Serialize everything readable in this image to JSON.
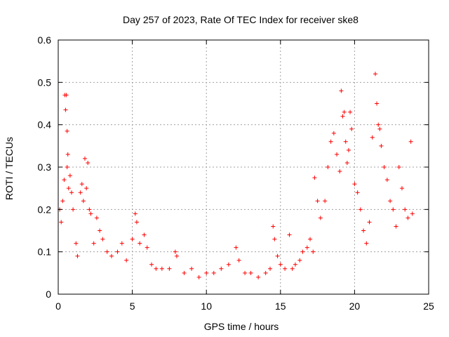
{
  "chart_data": {
    "type": "scatter",
    "title": "Day 257 of 2023, Rate Of TEC Index for receiver ske8",
    "xlabel": "GPS time / hours",
    "ylabel": "ROTI / TECUs",
    "xlim": [
      0,
      25
    ],
    "ylim": [
      0,
      0.6
    ],
    "x_ticks": [
      0,
      5,
      10,
      15,
      20,
      25
    ],
    "x_tick_labels": [
      "0",
      "5",
      "10",
      "15",
      "20",
      "25"
    ],
    "y_ticks": [
      0,
      0.1,
      0.2,
      0.3,
      0.4,
      0.5,
      0.6
    ],
    "y_tick_labels": [
      "0",
      "0.1",
      "0.2",
      "0.3",
      "0.4",
      "0.5",
      "0.6"
    ],
    "grid": true,
    "marker": "+",
    "color": "#ff0000",
    "series": [
      {
        "points": [
          [
            0.1,
            0.2
          ],
          [
            0.2,
            0.17
          ],
          [
            0.3,
            0.22
          ],
          [
            0.4,
            0.27
          ],
          [
            0.45,
            0.47
          ],
          [
            0.5,
            0.435
          ],
          [
            0.55,
            0.47
          ],
          [
            0.6,
            0.385
          ],
          [
            0.6,
            0.3
          ],
          [
            0.65,
            0.33
          ],
          [
            0.7,
            0.25
          ],
          [
            0.8,
            0.28
          ],
          [
            0.9,
            0.24
          ],
          [
            1.0,
            0.2
          ],
          [
            1.2,
            0.12
          ],
          [
            1.3,
            0.09
          ],
          [
            1.5,
            0.24
          ],
          [
            1.6,
            0.26
          ],
          [
            1.7,
            0.22
          ],
          [
            1.8,
            0.32
          ],
          [
            1.9,
            0.25
          ],
          [
            2.0,
            0.31
          ],
          [
            2.1,
            0.2
          ],
          [
            2.2,
            0.19
          ],
          [
            2.4,
            0.12
          ],
          [
            2.6,
            0.18
          ],
          [
            2.8,
            0.15
          ],
          [
            3.0,
            0.13
          ],
          [
            3.3,
            0.1
          ],
          [
            3.6,
            0.09
          ],
          [
            4.0,
            0.1
          ],
          [
            4.3,
            0.12
          ],
          [
            4.6,
            0.08
          ],
          [
            5.0,
            0.13
          ],
          [
            5.2,
            0.19
          ],
          [
            5.3,
            0.17
          ],
          [
            5.5,
            0.12
          ],
          [
            5.8,
            0.14
          ],
          [
            6.0,
            0.11
          ],
          [
            6.3,
            0.07
          ],
          [
            6.6,
            0.06
          ],
          [
            7.0,
            0.06
          ],
          [
            7.5,
            0.06
          ],
          [
            7.9,
            0.1
          ],
          [
            8.0,
            0.09
          ],
          [
            8.5,
            0.05
          ],
          [
            9.0,
            0.06
          ],
          [
            9.5,
            0.04
          ],
          [
            10.0,
            0.05
          ],
          [
            10.5,
            0.05
          ],
          [
            11.0,
            0.06
          ],
          [
            11.5,
            0.07
          ],
          [
            12.0,
            0.11
          ],
          [
            12.2,
            0.08
          ],
          [
            12.6,
            0.05
          ],
          [
            13.0,
            0.05
          ],
          [
            13.5,
            0.04
          ],
          [
            14.0,
            0.05
          ],
          [
            14.3,
            0.06
          ],
          [
            14.5,
            0.16
          ],
          [
            14.6,
            0.13
          ],
          [
            14.8,
            0.09
          ],
          [
            15.0,
            0.07
          ],
          [
            15.3,
            0.06
          ],
          [
            15.6,
            0.14
          ],
          [
            15.8,
            0.06
          ],
          [
            16.0,
            0.07
          ],
          [
            16.3,
            0.08
          ],
          [
            16.5,
            0.1
          ],
          [
            16.8,
            0.11
          ],
          [
            17.0,
            0.13
          ],
          [
            17.2,
            0.1
          ],
          [
            17.3,
            0.275
          ],
          [
            17.5,
            0.22
          ],
          [
            17.7,
            0.18
          ],
          [
            18.0,
            0.22
          ],
          [
            18.2,
            0.3
          ],
          [
            18.4,
            0.36
          ],
          [
            18.6,
            0.38
          ],
          [
            18.8,
            0.33
          ],
          [
            19.0,
            0.29
          ],
          [
            19.1,
            0.48
          ],
          [
            19.2,
            0.42
          ],
          [
            19.3,
            0.43
          ],
          [
            19.4,
            0.36
          ],
          [
            19.5,
            0.31
          ],
          [
            19.6,
            0.34
          ],
          [
            19.7,
            0.43
          ],
          [
            19.8,
            0.39
          ],
          [
            20.0,
            0.26
          ],
          [
            20.2,
            0.24
          ],
          [
            20.4,
            0.2
          ],
          [
            20.6,
            0.15
          ],
          [
            20.8,
            0.12
          ],
          [
            21.0,
            0.17
          ],
          [
            21.2,
            0.37
          ],
          [
            21.4,
            0.52
          ],
          [
            21.5,
            0.45
          ],
          [
            21.6,
            0.4
          ],
          [
            21.7,
            0.39
          ],
          [
            21.8,
            0.35
          ],
          [
            22.0,
            0.3
          ],
          [
            22.2,
            0.27
          ],
          [
            22.4,
            0.22
          ],
          [
            22.6,
            0.2
          ],
          [
            22.8,
            0.16
          ],
          [
            23.0,
            0.3
          ],
          [
            23.2,
            0.25
          ],
          [
            23.4,
            0.2
          ],
          [
            23.6,
            0.18
          ],
          [
            23.8,
            0.36
          ],
          [
            23.9,
            0.19
          ]
        ]
      }
    ]
  }
}
